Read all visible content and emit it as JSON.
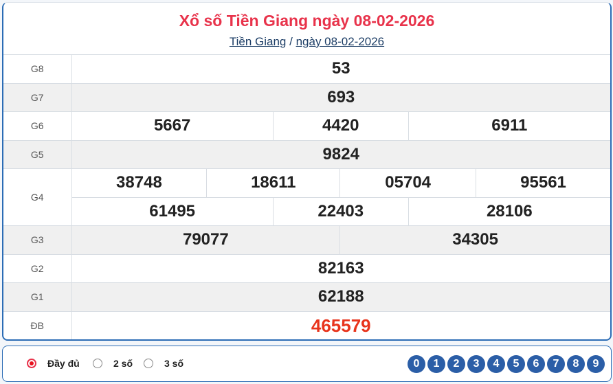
{
  "header": {
    "title": "Xổ số Tiền Giang ngày 08-02-2026",
    "breadcrumb": [
      "Tiền Giang",
      "ngày 08-02-2026"
    ],
    "separator": "/"
  },
  "prizes": [
    {
      "label": "G8",
      "numbers": [
        "53"
      ]
    },
    {
      "label": "G7",
      "numbers": [
        "693"
      ]
    },
    {
      "label": "G6",
      "numbers": [
        "5667",
        "4420",
        "6911"
      ]
    },
    {
      "label": "G5",
      "numbers": [
        "9824"
      ]
    },
    {
      "label": "G4",
      "numbers": [
        "38748",
        "18611",
        "05704",
        "95561",
        "61495",
        "22403",
        "28106"
      ]
    },
    {
      "label": "G3",
      "numbers": [
        "79077",
        "34305"
      ]
    },
    {
      "label": "G2",
      "numbers": [
        "82163"
      ]
    },
    {
      "label": "G1",
      "numbers": [
        "62188"
      ]
    },
    {
      "label": "ĐB",
      "numbers": [
        "465579"
      ]
    }
  ],
  "options": {
    "items": [
      "Đầy đủ",
      "2 số",
      "3 số"
    ],
    "selected": "Đầy đủ"
  },
  "digits": [
    "0",
    "1",
    "2",
    "3",
    "4",
    "5",
    "6",
    "7",
    "8",
    "9"
  ],
  "colors": {
    "title": "#e8334b",
    "special": "#e8341c",
    "accent": "#2b5ea7"
  }
}
